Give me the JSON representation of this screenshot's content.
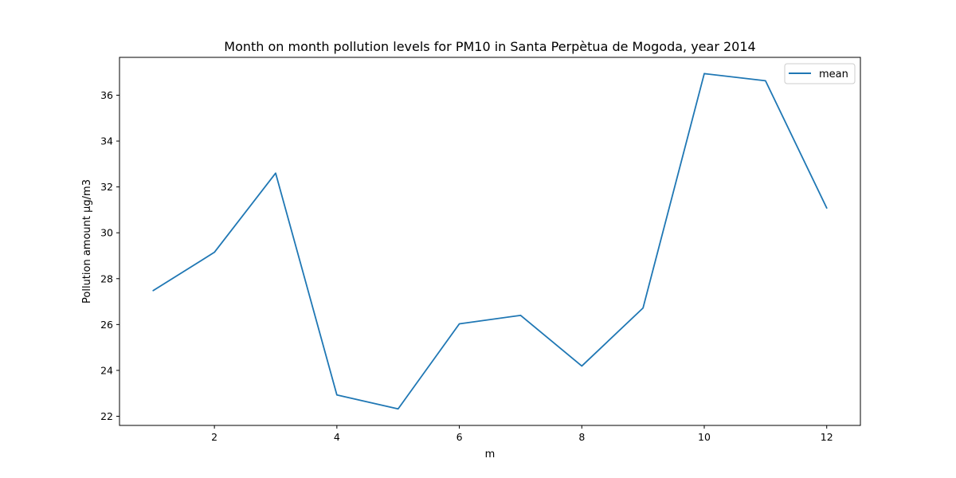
{
  "chart_data": {
    "type": "line",
    "title": "Month on month pollution levels for PM10 in Santa Perpètua de Mogoda, year 2014",
    "xlabel": "m",
    "ylabel": "Pollution amount µg/m3",
    "x": [
      1,
      2,
      3,
      4,
      5,
      6,
      7,
      8,
      9,
      10,
      11,
      12
    ],
    "series": [
      {
        "name": "mean",
        "color": "#1f77b4",
        "values": [
          27.48,
          29.15,
          32.6,
          22.93,
          22.32,
          26.03,
          26.4,
          24.19,
          26.72,
          36.94,
          36.63,
          31.08
        ]
      }
    ],
    "xlim": [
      0.45,
      12.55
    ],
    "ylim": [
      21.6,
      37.65
    ],
    "xticks": [
      2,
      4,
      6,
      8,
      10,
      12
    ],
    "yticks": [
      22,
      24,
      26,
      28,
      30,
      32,
      34,
      36
    ],
    "grid": false,
    "legend": "top-right"
  }
}
